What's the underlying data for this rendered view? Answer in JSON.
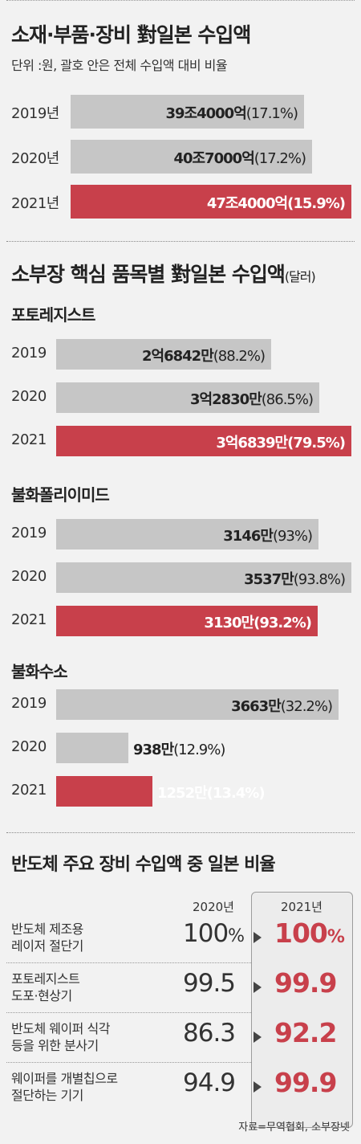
{
  "section1": {
    "title": "소재·부품·장비 對일본 수입액",
    "subtitle": "단위 :원, 괄호 안은 전체 수입액 대비 비율"
  },
  "section2": {
    "title": "소부장 핵심 품목별 對일본 수입액",
    "title_unit": "(달러)"
  },
  "section3": {
    "title": "반도체 주요 장비 수입액 중 일본 비율",
    "col_2020": "2020년",
    "col_2021": "2021년",
    "rows": [
      {
        "label1": "반도체 제조용",
        "label2": "레이저 절단기",
        "v2020": "100",
        "v2020_unit": "%",
        "v2021": "100",
        "v2021_unit": "%"
      },
      {
        "label1": "포토레지스트",
        "label2": "도포·현상기",
        "v2020": "99.5",
        "v2020_unit": "",
        "v2021": "99.9",
        "v2021_unit": ""
      },
      {
        "label1": "반도체 웨이퍼 식각",
        "label2": "등을 위한 분사기",
        "v2020": "86.3",
        "v2020_unit": "",
        "v2021": "92.2",
        "v2021_unit": ""
      },
      {
        "label1": "웨이퍼를 개별칩으로",
        "label2": "절단하는 기기",
        "v2020": "94.9",
        "v2020_unit": "",
        "v2021": "99.9",
        "v2021_unit": ""
      }
    ]
  },
  "source": "자료=무역협회, 소부장넷",
  "colors": {
    "highlight": "#c8404b",
    "bar_gray": "#c6c6c6",
    "background": "#f2f2f2"
  },
  "chart_data": [
    {
      "type": "bar",
      "orientation": "horizontal",
      "title": "소재·부품·장비 對일본 수입액",
      "categories": [
        "2019년",
        "2020년",
        "2021년"
      ],
      "values": [
        39.4,
        40.7,
        47.4
      ],
      "value_unit": "조원",
      "value_labels": [
        "39조4000억",
        "40조7000억",
        "47조4000억"
      ],
      "share_labels": [
        "(17.1%)",
        "(17.2%)",
        "(15.9%)"
      ],
      "share": [
        17.1,
        17.2,
        15.9
      ]
    },
    {
      "type": "bar",
      "orientation": "horizontal",
      "title": "포토레지스트",
      "categories": [
        "2019",
        "2020",
        "2021"
      ],
      "values": [
        26842,
        32830,
        36839
      ],
      "value_unit": "만 달러",
      "value_labels": [
        "2억6842만",
        "3억2830만",
        "3억6839만"
      ],
      "share_labels": [
        "(88.2%)",
        "(86.5%)",
        "(79.5%)"
      ],
      "share": [
        88.2,
        86.5,
        79.5
      ]
    },
    {
      "type": "bar",
      "orientation": "horizontal",
      "title": "불화폴리이미드",
      "categories": [
        "2019",
        "2020",
        "2021"
      ],
      "values": [
        3146,
        3537,
        3130
      ],
      "value_unit": "만 달러",
      "value_labels": [
        "3146만",
        "3537만",
        "3130만"
      ],
      "share_labels": [
        "(93%)",
        "(93.8%)",
        "(93.2%)"
      ],
      "share": [
        93,
        93.8,
        93.2
      ]
    },
    {
      "type": "bar",
      "orientation": "horizontal",
      "title": "불화수소",
      "categories": [
        "2019",
        "2020",
        "2021"
      ],
      "values": [
        3663,
        938,
        1252
      ],
      "value_unit": "만 달러",
      "value_labels": [
        "3663만",
        "938만",
        "1252만"
      ],
      "share_labels": [
        "(32.2%)",
        "(12.9%)",
        "(13.4%)"
      ],
      "share": [
        32.2,
        12.9,
        13.4
      ]
    }
  ]
}
